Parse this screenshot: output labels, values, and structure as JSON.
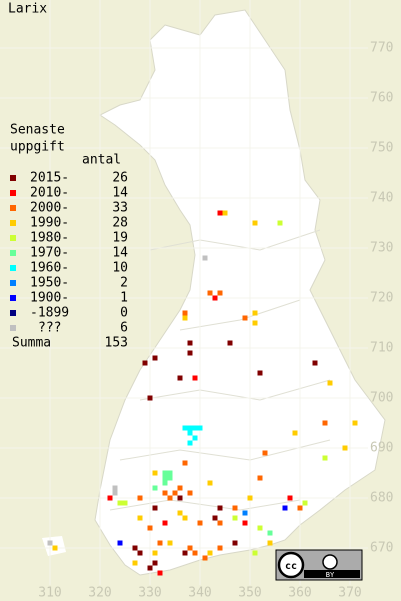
{
  "map_data": {
    "title": "Larix",
    "legend": {
      "heading": [
        "Senaste",
        "uppgift"
      ],
      "count_heading": "antal",
      "entries": [
        {
          "label": "2015-",
          "count": 26,
          "color": "#800000"
        },
        {
          "label": "2010-",
          "count": 14,
          "color": "#ff0000"
        },
        {
          "label": "2000-",
          "count": 33,
          "color": "#ff6600"
        },
        {
          "label": "1990-",
          "count": 28,
          "color": "#ffcc00"
        },
        {
          "label": "1980-",
          "count": 19,
          "color": "#ccff33"
        },
        {
          "label": "1970-",
          "count": 14,
          "color": "#66ff99"
        },
        {
          "label": "1960-",
          "count": 10,
          "color": "#00ffff"
        },
        {
          "label": "1950-",
          "count": 2,
          "color": "#0080ff"
        },
        {
          "label": "1900-",
          "count": 1,
          "color": "#0000ff"
        },
        {
          "label": "-1899",
          "count": 0,
          "color": "#000080"
        },
        {
          "label": "???",
          "count": 6,
          "color": "#c0c0c0"
        }
      ],
      "total_label": "Summa",
      "total": 153
    },
    "xlim": [
      300,
      380
    ],
    "ylim": [
      660,
      780
    ],
    "xticks": [
      310,
      320,
      330,
      340,
      350,
      360,
      370
    ],
    "yticks": [
      670,
      680,
      690,
      700,
      710,
      720,
      730,
      740,
      750,
      760,
      770
    ],
    "points": [
      {
        "x": 344,
        "y": 737,
        "period": "2010-"
      },
      {
        "x": 345,
        "y": 737,
        "period": "1990-"
      },
      {
        "x": 351,
        "y": 735,
        "period": "1990-"
      },
      {
        "x": 356,
        "y": 735,
        "period": "1980-"
      },
      {
        "x": 341,
        "y": 728,
        "period": "???"
      },
      {
        "x": 342,
        "y": 721,
        "period": "2000-"
      },
      {
        "x": 344,
        "y": 721,
        "period": "2000-"
      },
      {
        "x": 343,
        "y": 720,
        "period": "2010-"
      },
      {
        "x": 337,
        "y": 717,
        "period": "2000-"
      },
      {
        "x": 351,
        "y": 717,
        "period": "1990-"
      },
      {
        "x": 349,
        "y": 716,
        "period": "2000-"
      },
      {
        "x": 337,
        "y": 716,
        "period": "1990-"
      },
      {
        "x": 351,
        "y": 715,
        "period": "1990-"
      },
      {
        "x": 346,
        "y": 711,
        "period": "2015-"
      },
      {
        "x": 338,
        "y": 711,
        "period": "2015-"
      },
      {
        "x": 338,
        "y": 709,
        "period": "2015-"
      },
      {
        "x": 331,
        "y": 708,
        "period": "2015-"
      },
      {
        "x": 329,
        "y": 707,
        "period": "2015-"
      },
      {
        "x": 363,
        "y": 707,
        "period": "2015-"
      },
      {
        "x": 352,
        "y": 705,
        "period": "2015-"
      },
      {
        "x": 336,
        "y": 704,
        "period": "2015-"
      },
      {
        "x": 339,
        "y": 704,
        "period": "2010-"
      },
      {
        "x": 366,
        "y": 703,
        "period": "1990-"
      },
      {
        "x": 330,
        "y": 700,
        "period": "2015-"
      },
      {
        "x": 371,
        "y": 695,
        "period": "1990-"
      },
      {
        "x": 365,
        "y": 695,
        "period": "2000-"
      },
      {
        "x": 369,
        "y": 690,
        "period": "1990-"
      },
      {
        "x": 359,
        "y": 693,
        "period": "1990-"
      },
      {
        "x": 353,
        "y": 689,
        "period": "2000-"
      },
      {
        "x": 365,
        "y": 688,
        "period": "1980-"
      },
      {
        "x": 337,
        "y": 694,
        "period": "1960-"
      },
      {
        "x": 338,
        "y": 694,
        "period": "1960-"
      },
      {
        "x": 339,
        "y": 694,
        "period": "1960-"
      },
      {
        "x": 340,
        "y": 694,
        "period": "1960-"
      },
      {
        "x": 338,
        "y": 693,
        "period": "1960-"
      },
      {
        "x": 339,
        "y": 692,
        "period": "1960-"
      },
      {
        "x": 338,
        "y": 691,
        "period": "1960-"
      },
      {
        "x": 333,
        "y": 685,
        "period": "1970-"
      },
      {
        "x": 334,
        "y": 685,
        "period": "1970-"
      },
      {
        "x": 333,
        "y": 684,
        "period": "1970-"
      },
      {
        "x": 334,
        "y": 684,
        "period": "1970-"
      },
      {
        "x": 333,
        "y": 683,
        "period": "1970-"
      },
      {
        "x": 331,
        "y": 685,
        "period": "1990-"
      },
      {
        "x": 331,
        "y": 682,
        "period": "1970-"
      },
      {
        "x": 337,
        "y": 687,
        "period": "2000-"
      },
      {
        "x": 336,
        "y": 682,
        "period": "2000-"
      },
      {
        "x": 335,
        "y": 681,
        "period": "2000-"
      },
      {
        "x": 333,
        "y": 681,
        "period": "2000-"
      },
      {
        "x": 334,
        "y": 680,
        "period": "2000-"
      },
      {
        "x": 336,
        "y": 680,
        "period": "2015-"
      },
      {
        "x": 338,
        "y": 681,
        "period": "2000-"
      },
      {
        "x": 323,
        "y": 682,
        "period": "???"
      },
      {
        "x": 323,
        "y": 681,
        "period": "???"
      },
      {
        "x": 324,
        "y": 679,
        "period": "1980-"
      },
      {
        "x": 325,
        "y": 679,
        "period": "1980-"
      },
      {
        "x": 322,
        "y": 680,
        "period": "2010-"
      },
      {
        "x": 328,
        "y": 680,
        "period": "2000-"
      },
      {
        "x": 328,
        "y": 676,
        "period": "1990-"
      },
      {
        "x": 331,
        "y": 678,
        "period": "2015-"
      },
      {
        "x": 336,
        "y": 677,
        "period": "1990-"
      },
      {
        "x": 337,
        "y": 676,
        "period": "1990-"
      },
      {
        "x": 342,
        "y": 683,
        "period": "1990-"
      },
      {
        "x": 344,
        "y": 678,
        "period": "2015-"
      },
      {
        "x": 347,
        "y": 678,
        "period": "2000-"
      },
      {
        "x": 350,
        "y": 680,
        "period": "1990-"
      },
      {
        "x": 352,
        "y": 684,
        "period": "2000-"
      },
      {
        "x": 358,
        "y": 680,
        "period": "2010-"
      },
      {
        "x": 361,
        "y": 679,
        "period": "1980-"
      },
      {
        "x": 360,
        "y": 678,
        "period": "2000-"
      },
      {
        "x": 357,
        "y": 678,
        "period": "1900-"
      },
      {
        "x": 349,
        "y": 677,
        "period": "1950-"
      },
      {
        "x": 347,
        "y": 676,
        "period": "1980-"
      },
      {
        "x": 349,
        "y": 675,
        "period": "2010-"
      },
      {
        "x": 352,
        "y": 674,
        "period": "1980-"
      },
      {
        "x": 354,
        "y": 673,
        "period": "1970-"
      },
      {
        "x": 344,
        "y": 675,
        "period": "2000-"
      },
      {
        "x": 343,
        "y": 676,
        "period": "2015-"
      },
      {
        "x": 340,
        "y": 675,
        "period": "2000-"
      },
      {
        "x": 333,
        "y": 675,
        "period": "2010-"
      },
      {
        "x": 330,
        "y": 674,
        "period": "2000-"
      },
      {
        "x": 324,
        "y": 671,
        "period": "1900-"
      },
      {
        "x": 327,
        "y": 670,
        "period": "2015-"
      },
      {
        "x": 328,
        "y": 669,
        "period": "2015-"
      },
      {
        "x": 331,
        "y": 669,
        "period": "1990-"
      },
      {
        "x": 332,
        "y": 671,
        "period": "2000-"
      },
      {
        "x": 334,
        "y": 671,
        "period": "1990-"
      },
      {
        "x": 337,
        "y": 669,
        "period": "2015-"
      },
      {
        "x": 338,
        "y": 670,
        "period": "2000-"
      },
      {
        "x": 339,
        "y": 669,
        "period": "2000-"
      },
      {
        "x": 341,
        "y": 668,
        "period": "2000-"
      },
      {
        "x": 342,
        "y": 669,
        "period": "1990-"
      },
      {
        "x": 344,
        "y": 670,
        "period": "2000-"
      },
      {
        "x": 347,
        "y": 671,
        "period": "2015-"
      },
      {
        "x": 351,
        "y": 669,
        "period": "1980-"
      },
      {
        "x": 354,
        "y": 671,
        "period": "1990-"
      },
      {
        "x": 331,
        "y": 667,
        "period": "2015-"
      },
      {
        "x": 327,
        "y": 667,
        "period": "1990-"
      },
      {
        "x": 332,
        "y": 665,
        "period": "2010-"
      },
      {
        "x": 311,
        "y": 670,
        "period": "1990-"
      },
      {
        "x": 310,
        "y": 671,
        "period": "???"
      },
      {
        "x": 330,
        "y": 666,
        "period": "2015-"
      }
    ],
    "license": {
      "badge": "cc",
      "label": "BY"
    }
  }
}
